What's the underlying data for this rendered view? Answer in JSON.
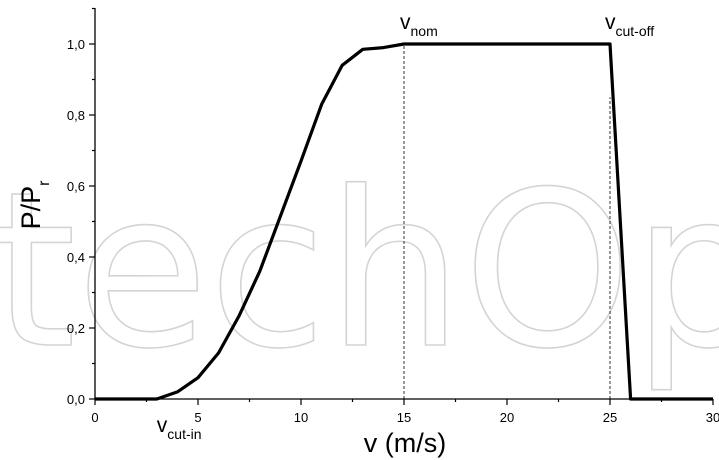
{
  "watermark": "techOpen",
  "chart_data": {
    "type": "line",
    "xlabel": "v (m/s)",
    "ylabel": "P/P",
    "ylabel_sub": "r",
    "xlim": [
      0,
      30
    ],
    "ylim": [
      0,
      1.1
    ],
    "x_ticks": [
      0,
      5,
      10,
      15,
      20,
      25,
      30
    ],
    "x_tick_labels": [
      "0",
      "5",
      "10",
      "15",
      "20",
      "25",
      "30"
    ],
    "y_ticks": [
      0,
      0.2,
      0.4,
      0.6,
      0.8,
      1.0
    ],
    "y_tick_labels": [
      "0,0",
      "0,2",
      "0,4",
      "0,6",
      "0,8",
      "1,0"
    ],
    "grid": false,
    "series": [
      {
        "x": [
          0,
          3,
          4,
          5,
          6,
          7,
          8,
          9,
          10,
          11,
          12,
          13,
          14,
          15,
          20,
          25,
          26,
          30
        ],
        "y": [
          0,
          0,
          0.02,
          0.06,
          0.13,
          0.235,
          0.36,
          0.515,
          0.67,
          0.83,
          0.94,
          0.985,
          0.99,
          1.0,
          1.0,
          1.0,
          0,
          0
        ]
      }
    ],
    "reference_lines": [
      {
        "x": 15,
        "y_to": 1.0
      },
      {
        "x": 25,
        "y_to": 0.85
      }
    ],
    "annotations": [
      {
        "text": "v",
        "sub": "nom",
        "x": 15,
        "y": 1.0
      },
      {
        "text": "v",
        "sub": "cut-off",
        "x": 25,
        "y": 1.0
      },
      {
        "text": "v",
        "sub": "cut-in",
        "x": 3,
        "y": 0
      }
    ]
  }
}
